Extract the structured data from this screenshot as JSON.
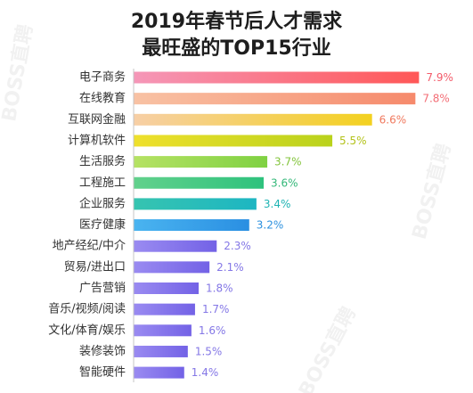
{
  "watermark": "BOSS直聘",
  "colors": {
    "title": "#1e1e1e",
    "category_label": "#333333",
    "axis": "#c4c4c4"
  },
  "chart_data": {
    "type": "bar",
    "orientation": "horizontal",
    "title_lines": [
      "2019年春节后人才需求",
      "最旺盛的TOP15行业"
    ],
    "xlim": [
      0,
      9
    ],
    "grid": false,
    "categories": [
      "电子商务",
      "在线教育",
      "互联网金融",
      "计算机软件",
      "生活服务",
      "工程施工",
      "企业服务",
      "医疗健康",
      "地产经纪/中介",
      "贸易/进出口",
      "广告营销",
      "音乐/视频/阅读",
      "文化/体育/娱乐",
      "装修装饰",
      "智能硬件"
    ],
    "values": [
      7.9,
      7.8,
      6.6,
      5.5,
      3.7,
      3.6,
      3.4,
      3.2,
      2.3,
      2.1,
      1.8,
      1.7,
      1.6,
      1.5,
      1.4
    ],
    "value_labels": [
      "7.9%",
      "7.8%",
      "6.6%",
      "5.5%",
      "3.7%",
      "3.6%",
      "3.4%",
      "3.2%",
      "2.3%",
      "2.1%",
      "1.8%",
      "1.7%",
      "1.6%",
      "1.5%",
      "1.4%"
    ],
    "bar_gradients": [
      [
        "#f597b8",
        "#ff5757"
      ],
      [
        "#f8c2a4",
        "#f68a6c"
      ],
      [
        "#f7cfa6",
        "#f3d11f"
      ],
      [
        "#efe02c",
        "#b9d21c"
      ],
      [
        "#b6e264",
        "#7fd142"
      ],
      [
        "#62d18c",
        "#2ec27d"
      ],
      [
        "#36c4b0",
        "#1db6c2"
      ],
      [
        "#4ab4f0",
        "#2a8fe2"
      ],
      [
        "#9a8bf1",
        "#7362e6"
      ],
      [
        "#9a8bf1",
        "#7362e6"
      ],
      [
        "#9a8bf1",
        "#7362e6"
      ],
      [
        "#9a8bf1",
        "#7362e6"
      ],
      [
        "#9a8bf1",
        "#7362e6"
      ],
      [
        "#9a8bf1",
        "#7362e6"
      ],
      [
        "#9a8bf1",
        "#7362e6"
      ]
    ],
    "label_colors": [
      "#f35b6a",
      "#f36e76",
      "#f0795e",
      "#b3c21a",
      "#83c43c",
      "#34b879",
      "#1db3b3",
      "#2d91df",
      "#8477e6",
      "#8477e6",
      "#8477e6",
      "#8477e6",
      "#8477e6",
      "#8477e6",
      "#8477e6"
    ]
  }
}
